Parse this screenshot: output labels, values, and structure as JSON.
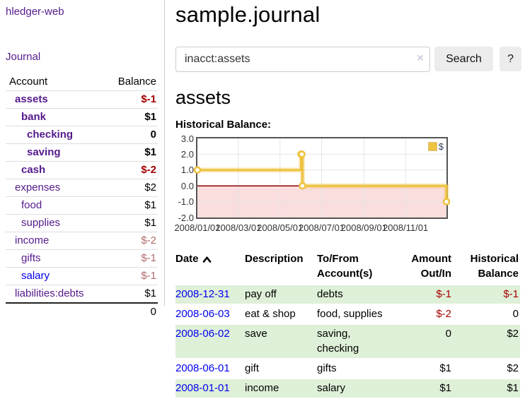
{
  "app": {
    "brand": "hledger-web",
    "nav_journal": "Journal"
  },
  "sidebar": {
    "header": {
      "account": "Account",
      "balance": "Balance"
    },
    "accounts": [
      {
        "name": "assets",
        "level": 1,
        "bold": true,
        "link": "purple",
        "balance": "$-1",
        "tone": "neg"
      },
      {
        "name": "bank",
        "level": 2,
        "bold": true,
        "link": "purple",
        "balance": "$1",
        "tone": ""
      },
      {
        "name": "checking",
        "level": 3,
        "bold": true,
        "link": "purple",
        "balance": "0",
        "tone": ""
      },
      {
        "name": "saving",
        "level": 3,
        "bold": true,
        "link": "purple",
        "balance": "$1",
        "tone": ""
      },
      {
        "name": "cash",
        "level": 2,
        "bold": true,
        "link": "purple",
        "balance": "$-2",
        "tone": "neg"
      },
      {
        "name": "expenses",
        "level": 1,
        "bold": false,
        "link": "purple",
        "balance": "$2",
        "tone": ""
      },
      {
        "name": "food",
        "level": 2,
        "bold": false,
        "link": "purple",
        "balance": "$1",
        "tone": ""
      },
      {
        "name": "supplies",
        "level": 2,
        "bold": false,
        "link": "purple",
        "balance": "$1",
        "tone": ""
      },
      {
        "name": "income",
        "level": 1,
        "bold": false,
        "link": "purple",
        "balance": "$-2",
        "tone": "negmuted"
      },
      {
        "name": "gifts",
        "level": 2,
        "bold": false,
        "link": "purple",
        "balance": "$-1",
        "tone": "negmuted"
      },
      {
        "name": "salary",
        "level": 2,
        "bold": false,
        "link": "blue",
        "balance": "$-1",
        "tone": "negmuted"
      },
      {
        "name": "liabilities:debts",
        "level": 1,
        "bold": false,
        "link": "purple",
        "balance": "$1",
        "tone": ""
      }
    ],
    "total": "0"
  },
  "main": {
    "title": "sample.journal",
    "search": {
      "value": "inacct:assets",
      "clear_icon": "×",
      "button": "Search",
      "help": "?"
    },
    "account_heading": "assets",
    "chart_title": "Historical Balance:"
  },
  "chart_data": {
    "type": "line",
    "step": true,
    "title": "Historical Balance:",
    "legend": [
      {
        "label": "$",
        "color": "#EDC240"
      }
    ],
    "series": [
      {
        "name": "$",
        "points": [
          {
            "date": "2008-01-01",
            "day": 0,
            "value": 1
          },
          {
            "date": "2008-06-01",
            "day": 152,
            "value": 2
          },
          {
            "date": "2008-06-02",
            "day": 153,
            "value": 2
          },
          {
            "date": "2008-06-03",
            "day": 154,
            "value": 0
          },
          {
            "date": "2008-12-31",
            "day": 365,
            "value": -1
          }
        ]
      }
    ],
    "ylim": [
      -2,
      3
    ],
    "ytick_labels": [
      "3.0",
      "2.0",
      "1.0",
      "0.0",
      "-1.0",
      "-2.0"
    ],
    "ytick_values": [
      3,
      2,
      1,
      0,
      -1,
      -2
    ],
    "xticks": [
      {
        "label": "2008/01/01",
        "day": 0
      },
      {
        "label": "2008/03/01",
        "day": 60
      },
      {
        "label": "2008/05/01",
        "day": 121
      },
      {
        "label": "2008/07/01",
        "day": 182
      },
      {
        "label": "2008/09/01",
        "day": 244
      },
      {
        "label": "2008/11/01",
        "day": 305
      }
    ],
    "xrange_days": 365,
    "grid": true,
    "legend_position": "top-right",
    "line_color": "#EDC240",
    "negative_region_color": "#FADDDD",
    "zero_line_color": "#8B0000",
    "grid_color": "#E5E5E5"
  },
  "register": {
    "columns": [
      {
        "label": "Date",
        "sorted": "asc"
      },
      {
        "label": "Description"
      },
      {
        "label": "To/From Account(s)"
      },
      {
        "label": "Amount Out/In",
        "align": "right"
      },
      {
        "label": "Historical Balance",
        "align": "right"
      }
    ],
    "rows": [
      {
        "date": "2008-12-31",
        "description": "pay off",
        "accounts": "debts",
        "amount": "$-1",
        "amount_tone": "neg",
        "balance": "$-1",
        "balance_tone": "neg",
        "shade": true
      },
      {
        "date": "2008-06-03",
        "description": "eat & shop",
        "accounts": "food, supplies",
        "amount": "$-2",
        "amount_tone": "neg",
        "balance": "0",
        "balance_tone": "",
        "shade": false
      },
      {
        "date": "2008-06-02",
        "description": "save",
        "accounts": "saving, checking",
        "amount": "0",
        "amount_tone": "",
        "balance": "$2",
        "balance_tone": "",
        "shade": true
      },
      {
        "date": "2008-06-01",
        "description": "gift",
        "accounts": "gifts",
        "amount": "$1",
        "amount_tone": "",
        "balance": "$2",
        "balance_tone": "",
        "shade": false
      },
      {
        "date": "2008-01-01",
        "description": "income",
        "accounts": "salary",
        "amount": "$1",
        "amount_tone": "",
        "balance": "$1",
        "balance_tone": "",
        "shade": true
      }
    ]
  }
}
